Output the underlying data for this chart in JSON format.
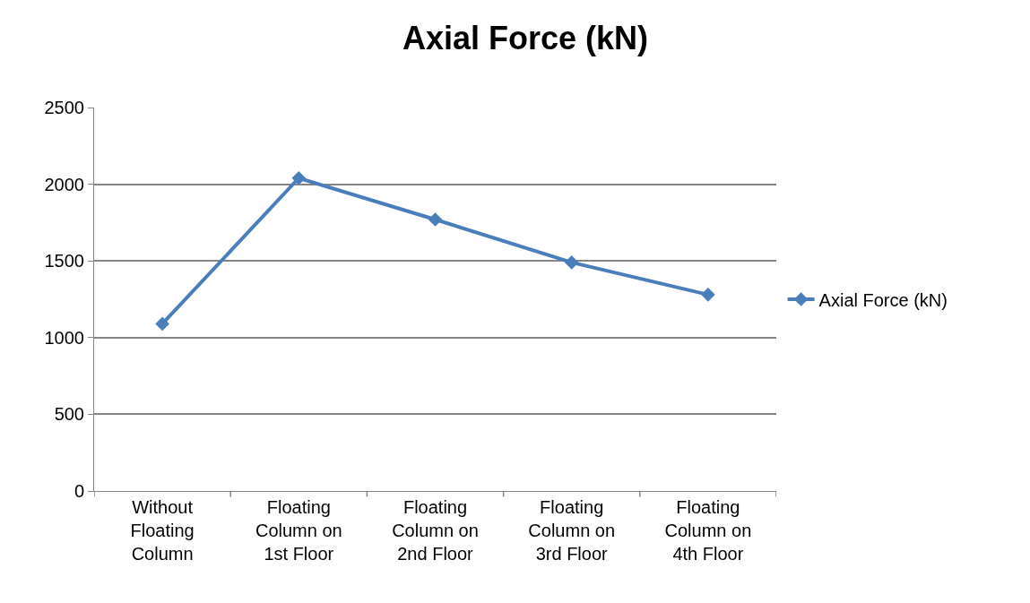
{
  "chart_data": {
    "type": "line",
    "title": "Axial Force (kN)",
    "categories": [
      "Without Floating Column",
      "Floating Column on 1st Floor",
      "Floating Column on 2nd Floor",
      "Floating Column on 3rd Floor",
      "Floating Column on 4th Floor"
    ],
    "series": [
      {
        "name": "Axial Force (kN)",
        "color": "#4a7ebb",
        "values": [
          1090,
          2040,
          1770,
          1490,
          1280
        ]
      }
    ],
    "ylim": [
      0,
      2500
    ],
    "yticks": [
      0,
      500,
      1000,
      1500,
      2000,
      2500
    ],
    "grid": "y",
    "legend": "right",
    "marker": "diamond",
    "line_style": "solid"
  }
}
